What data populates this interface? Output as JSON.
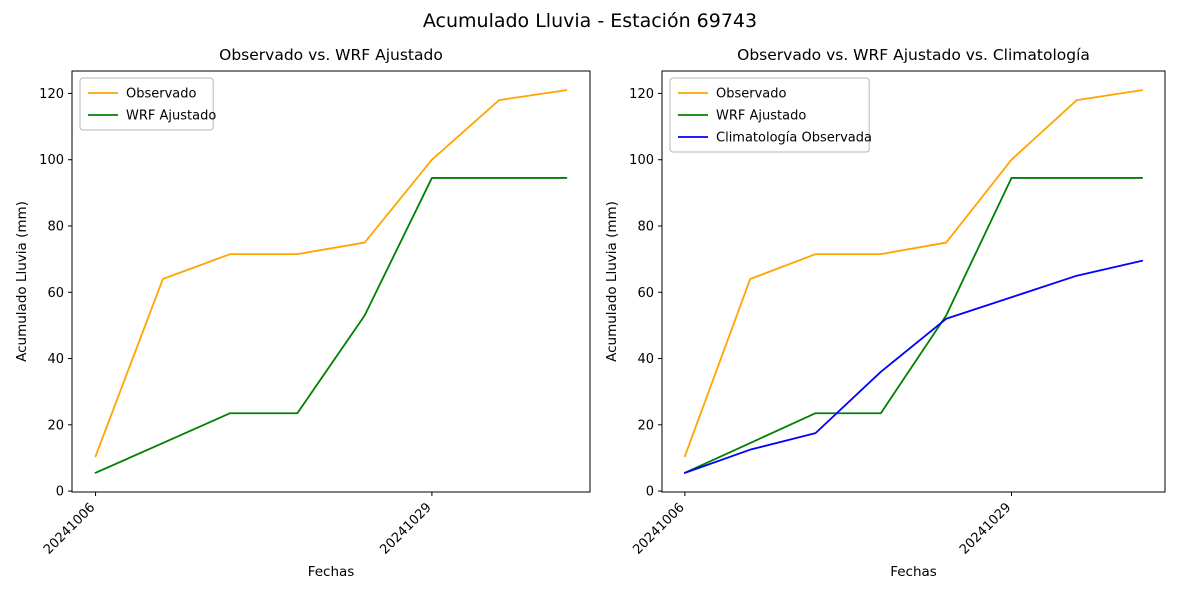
{
  "figure": {
    "suptitle": "Acumulado Lluvia - Estación 69743"
  },
  "chart_data": [
    {
      "type": "line",
      "title": "Observado vs. WRF Ajustado",
      "xlabel": "Fechas",
      "ylabel": "Acumulado Lluvia (mm)",
      "x_points": 8,
      "xticks": [
        {
          "pos": 0,
          "label": "20241006"
        },
        {
          "pos": 5,
          "label": "20241029"
        }
      ],
      "yticks": [
        0,
        20,
        40,
        60,
        80,
        100,
        120
      ],
      "grid": false,
      "legend_position": "upper left",
      "series": [
        {
          "name": "Observado",
          "color": "#ffa500",
          "values": [
            10.5,
            64,
            71.5,
            71.5,
            75,
            100,
            118,
            121
          ]
        },
        {
          "name": "WRF Ajustado",
          "color": "#008000",
          "values": [
            5.5,
            14.5,
            23.5,
            23.5,
            53,
            94.5,
            94.5,
            94.5
          ]
        }
      ]
    },
    {
      "type": "line",
      "title": "Observado vs. WRF Ajustado vs. Climatología",
      "xlabel": "Fechas",
      "ylabel": "Acumulado Lluvia (mm)",
      "x_points": 8,
      "xticks": [
        {
          "pos": 0,
          "label": "20241006"
        },
        {
          "pos": 5,
          "label": "20241029"
        }
      ],
      "yticks": [
        0,
        20,
        40,
        60,
        80,
        100,
        120
      ],
      "grid": false,
      "legend_position": "upper left",
      "series": [
        {
          "name": "Observado",
          "color": "#ffa500",
          "values": [
            10.5,
            64,
            71.5,
            71.5,
            75,
            100,
            118,
            121
          ]
        },
        {
          "name": "WRF Ajustado",
          "color": "#008000",
          "values": [
            5.5,
            14.5,
            23.5,
            23.5,
            53,
            94.5,
            94.5,
            94.5
          ]
        },
        {
          "name": "Climatología Observada",
          "color": "#0000ff",
          "values": [
            5.5,
            12.5,
            17.5,
            36,
            52,
            58.5,
            65,
            69.5
          ]
        }
      ]
    }
  ]
}
